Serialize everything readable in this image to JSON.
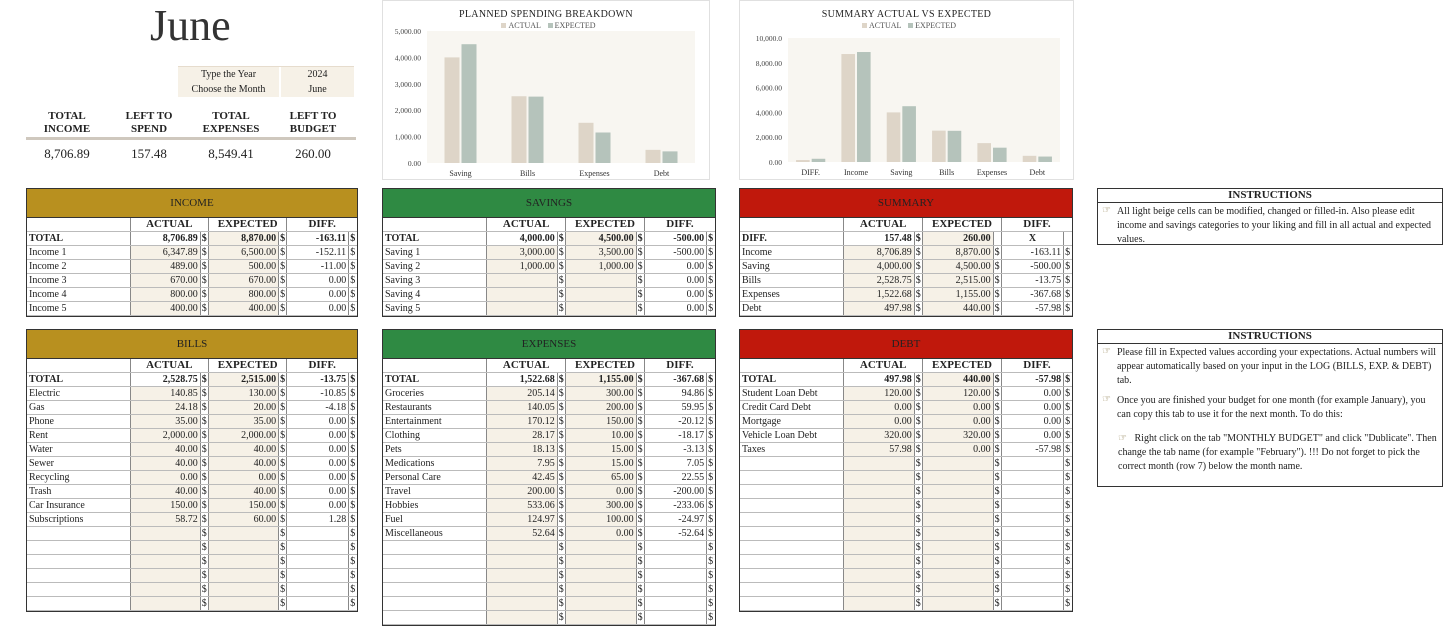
{
  "month_title": "June",
  "selector": {
    "year_label": "Type the Year",
    "year": "2024",
    "month_label": "Choose the Month",
    "month": "June"
  },
  "summary_header": {
    "labels": [
      "TOTAL INCOME",
      "LEFT TO SPEND",
      "TOTAL EXPENSES",
      "LEFT TO BUDGET"
    ],
    "values": [
      "8,706.89",
      "157.48",
      "8,549.41",
      "260.00"
    ]
  },
  "colors": {
    "gold": "#b8901f",
    "green": "#2f8a43",
    "red": "#c0180c",
    "beige": "#f6f1e7",
    "actual_bar": "#ded5c8",
    "expected_bar": "#b5c3bb"
  },
  "chart_data": [
    {
      "type": "bar",
      "title": "PLANNED SPENDING BREAKDOWN",
      "categories": [
        "Saving",
        "Bills",
        "Expenses",
        "Debt"
      ],
      "series": [
        {
          "name": "ACTUAL",
          "values": [
            4000,
            2528.75,
            1522.68,
            497.98
          ]
        },
        {
          "name": "EXPECTED",
          "values": [
            4500,
            2515,
            1155,
            440
          ]
        }
      ],
      "ylim": [
        0,
        5000
      ],
      "yticks": [
        "0.00",
        "1,000.00",
        "2,000.00",
        "3,000.00",
        "4,000.00",
        "5,000.00"
      ],
      "legend": "top"
    },
    {
      "type": "bar",
      "title": "SUMMARY ACTUAL VS EXPECTED",
      "categories": [
        "DIFF.",
        "Income",
        "Saving",
        "Bills",
        "Expenses",
        "Debt"
      ],
      "series": [
        {
          "name": "ACTUAL",
          "values": [
            157.48,
            8706.89,
            4000,
            2528.75,
            1522.68,
            497.98
          ]
        },
        {
          "name": "EXPECTED",
          "values": [
            260,
            8870,
            4500,
            2515,
            1155,
            440
          ]
        }
      ],
      "ylim": [
        0,
        10000
      ],
      "yticks": [
        "0.00",
        "2,000.00",
        "4,000.00",
        "6,000.00",
        "8,000.00",
        "10,000.0"
      ],
      "legend": "top"
    }
  ],
  "col_headers": [
    "ACTUAL",
    "EXPECTED",
    "DIFF."
  ],
  "currency": "$",
  "income": {
    "title": "INCOME",
    "rows": [
      [
        "TOTAL",
        "8,706.89",
        "8,870.00",
        "-163.11"
      ],
      [
        "Income 1",
        "6,347.89",
        "6,500.00",
        "-152.11"
      ],
      [
        "Income 2",
        "489.00",
        "500.00",
        "-11.00"
      ],
      [
        "Income 3",
        "670.00",
        "670.00",
        "0.00"
      ],
      [
        "Income 4",
        "800.00",
        "800.00",
        "0.00"
      ],
      [
        "Income 5",
        "400.00",
        "400.00",
        "0.00"
      ]
    ]
  },
  "savings": {
    "title": "SAVINGS",
    "rows": [
      [
        "TOTAL",
        "4,000.00",
        "4,500.00",
        "-500.00"
      ],
      [
        "Saving 1",
        "3,000.00",
        "3,500.00",
        "-500.00"
      ],
      [
        "Saving 2",
        "1,000.00",
        "1,000.00",
        "0.00"
      ],
      [
        "Saving 3",
        "",
        "",
        "0.00"
      ],
      [
        "Saving 4",
        "",
        "",
        "0.00"
      ],
      [
        "Saving 5",
        "",
        "",
        "0.00"
      ]
    ]
  },
  "summary": {
    "title": "SUMMARY",
    "rows": [
      [
        "DIFF.",
        "157.48",
        "260.00",
        "X"
      ],
      [
        "Income",
        "8,706.89",
        "8,870.00",
        "-163.11"
      ],
      [
        "Saving",
        "4,000.00",
        "4,500.00",
        "-500.00"
      ],
      [
        "Bills",
        "2,528.75",
        "2,515.00",
        "-13.75"
      ],
      [
        "Expenses",
        "1,522.68",
        "1,155.00",
        "-367.68"
      ],
      [
        "Debt",
        "497.98",
        "440.00",
        "-57.98"
      ]
    ]
  },
  "bills": {
    "title": "BILLS",
    "rows": [
      [
        "TOTAL",
        "2,528.75",
        "2,515.00",
        "-13.75"
      ],
      [
        "Electric",
        "140.85",
        "130.00",
        "-10.85"
      ],
      [
        "Gas",
        "24.18",
        "20.00",
        "-4.18"
      ],
      [
        "Phone",
        "35.00",
        "35.00",
        "0.00"
      ],
      [
        "Rent",
        "2,000.00",
        "2,000.00",
        "0.00"
      ],
      [
        "Water",
        "40.00",
        "40.00",
        "0.00"
      ],
      [
        "Sewer",
        "40.00",
        "40.00",
        "0.00"
      ],
      [
        "Recycling",
        "0.00",
        "0.00",
        "0.00"
      ],
      [
        "Trash",
        "40.00",
        "40.00",
        "0.00"
      ],
      [
        "Car Insurance",
        "150.00",
        "150.00",
        "0.00"
      ],
      [
        "Subscriptions",
        "58.72",
        "60.00",
        "1.28"
      ],
      [
        "",
        "",
        "",
        ""
      ],
      [
        "",
        "",
        "",
        ""
      ],
      [
        "",
        "",
        "",
        ""
      ],
      [
        "",
        "",
        "",
        ""
      ],
      [
        "",
        "",
        "",
        ""
      ],
      [
        "",
        "",
        "",
        ""
      ]
    ]
  },
  "expenses": {
    "title": "EXPENSES",
    "rows": [
      [
        "TOTAL",
        "1,522.68",
        "1,155.00",
        "-367.68"
      ],
      [
        "Groceries",
        "205.14",
        "300.00",
        "94.86"
      ],
      [
        "Restaurants",
        "140.05",
        "200.00",
        "59.95"
      ],
      [
        "Entertainment",
        "170.12",
        "150.00",
        "-20.12"
      ],
      [
        "Clothing",
        "28.17",
        "10.00",
        "-18.17"
      ],
      [
        "Pets",
        "18.13",
        "15.00",
        "-3.13"
      ],
      [
        "Medications",
        "7.95",
        "15.00",
        "7.05"
      ],
      [
        "Personal Care",
        "42.45",
        "65.00",
        "22.55"
      ],
      [
        "Travel",
        "200.00",
        "0.00",
        "-200.00"
      ],
      [
        "Hobbies",
        "533.06",
        "300.00",
        "-233.06"
      ],
      [
        "Fuel",
        "124.97",
        "100.00",
        "-24.97"
      ],
      [
        "Miscellaneous",
        "52.64",
        "0.00",
        "-52.64"
      ],
      [
        "",
        "",
        "",
        ""
      ],
      [
        "",
        "",
        "",
        ""
      ],
      [
        "",
        "",
        "",
        ""
      ],
      [
        "",
        "",
        "",
        ""
      ],
      [
        "",
        "",
        "",
        ""
      ],
      [
        "",
        "",
        "",
        ""
      ]
    ]
  },
  "debt": {
    "title": "DEBT",
    "rows": [
      [
        "TOTAL",
        "497.98",
        "440.00",
        "-57.98"
      ],
      [
        "Student Loan Debt",
        "120.00",
        "120.00",
        "0.00"
      ],
      [
        "Credit Card Debt",
        "0.00",
        "0.00",
        "0.00"
      ],
      [
        "Mortgage",
        "0.00",
        "0.00",
        "0.00"
      ],
      [
        "Vehicle Loan Debt",
        "320.00",
        "320.00",
        "0.00"
      ],
      [
        "Taxes",
        "57.98",
        "0.00",
        "-57.98"
      ],
      [
        "",
        "",
        "",
        ""
      ],
      [
        "",
        "",
        "",
        ""
      ],
      [
        "",
        "",
        "",
        ""
      ],
      [
        "",
        "",
        "",
        ""
      ],
      [
        "",
        "",
        "",
        ""
      ],
      [
        "",
        "",
        "",
        ""
      ],
      [
        "",
        "",
        "",
        ""
      ],
      [
        "",
        "",
        "",
        ""
      ],
      [
        "",
        "",
        "",
        ""
      ],
      [
        "",
        "",
        "",
        ""
      ],
      [
        "",
        "",
        "",
        ""
      ]
    ]
  },
  "instructions1": {
    "title": "INSTRUCTIONS",
    "text": "All light beige cells can be modified, changed or filled-in. Also please edit income and savings categories to your liking and fill in all actual and expected values."
  },
  "instructions2": {
    "title": "INSTRUCTIONS",
    "p1": "Please fill in Expected values according your expectations. Actual numbers will appear automatically based on your input in the LOG (BILLS, EXP. & DEBT) tab.",
    "p2": "Once you are finished your budget for one month (for example January), you can copy this tab to use it for the next month. To do this:",
    "p3": "Right click on the tab \"MONTHLY BUDGET\" and click \"Dublicate\". Then change the tab name (for example \"February\"). !!! Do not forget to pick the correct month (row 7) below the month name."
  }
}
